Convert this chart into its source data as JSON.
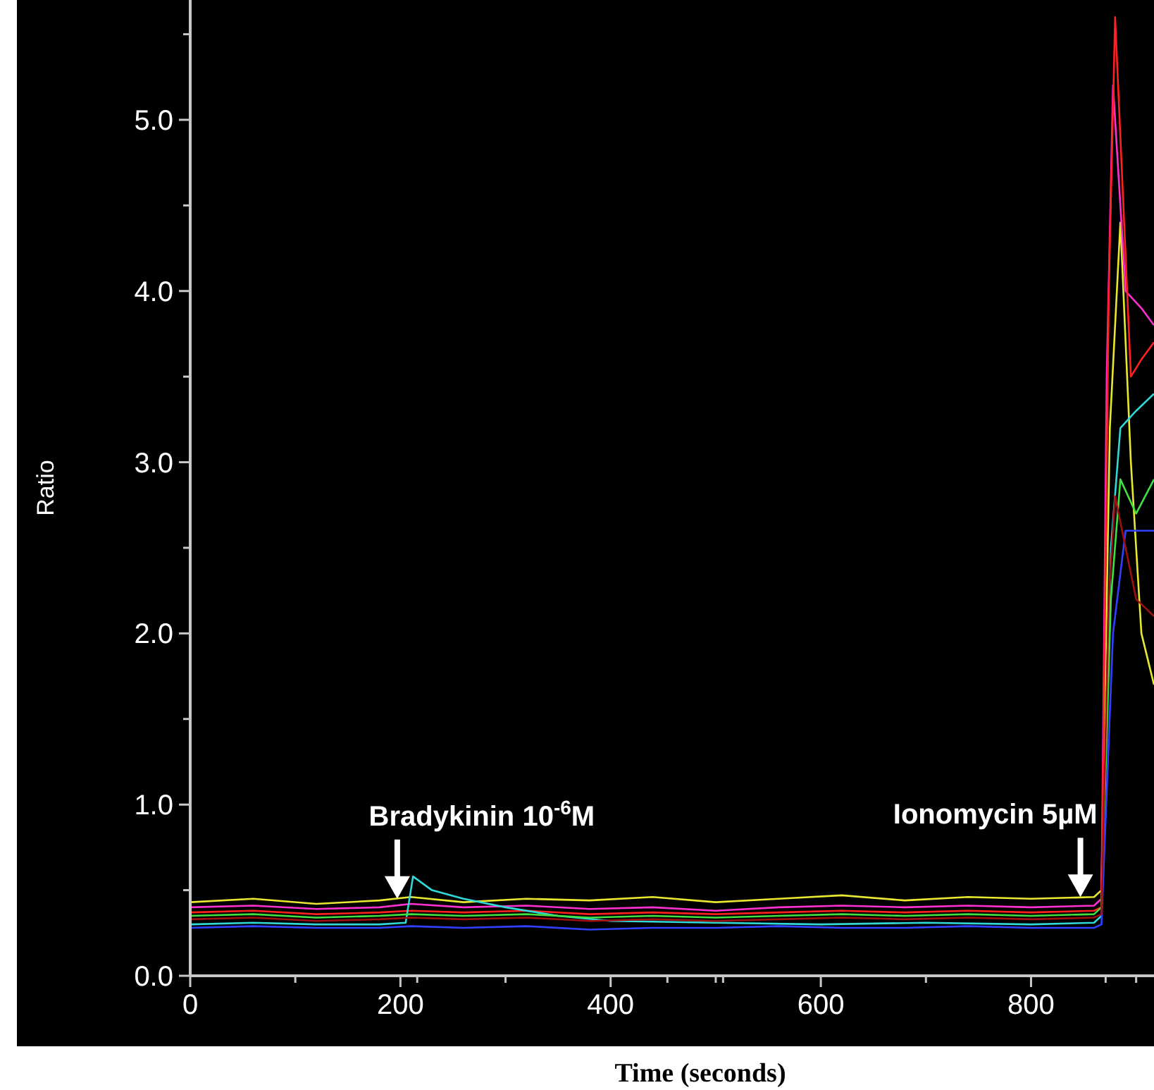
{
  "chart_data": {
    "type": "line",
    "xlabel": "Time (seconds)",
    "ylabel": "Ratio",
    "xlim": [
      0,
      917
    ],
    "ylim": [
      0,
      5.7
    ],
    "xticks": [
      0,
      {
        "value": 100,
        "label": null
      },
      200,
      {
        "value": 216,
        "label": null
      },
      {
        "value": 300,
        "label": null
      },
      400,
      {
        "value": 454,
        "label": null
      },
      {
        "value": 500,
        "label": null
      },
      {
        "value": 507,
        "label": null
      },
      600,
      {
        "value": 700,
        "label": null
      },
      800,
      {
        "value": 871,
        "label": null
      },
      {
        "value": 900,
        "label": null
      }
    ],
    "yticks": [
      {
        "value": 0,
        "label": "0.0"
      },
      {
        "value": 0.5,
        "label": null
      },
      {
        "value": 1,
        "label": "1.0"
      },
      {
        "value": 1.5,
        "label": null
      },
      {
        "value": 2,
        "label": "2.0"
      },
      {
        "value": 2.5,
        "label": null
      },
      {
        "value": 3,
        "label": "3.0"
      },
      {
        "value": 3.5,
        "label": null
      },
      {
        "value": 4,
        "label": "4.0"
      },
      {
        "value": 4.5,
        "label": null
      },
      {
        "value": 5,
        "label": "5.0"
      },
      {
        "value": 5.5,
        "label": null
      }
    ],
    "grid": false,
    "marker": "none",
    "line_style": "solid",
    "annotations": [
      {
        "text": "Bradykinin 10$^{-6}$M",
        "x": 197,
        "y": 0.45
      },
      {
        "text": "Ionomycin 5µM",
        "x": 847,
        "y": 0.46
      }
    ],
    "series": [
      {
        "color": "#e8e830",
        "x": [
          0,
          60,
          120,
          180,
          210,
          260,
          320,
          380,
          440,
          500,
          560,
          620,
          680,
          740,
          800,
          860,
          867,
          875,
          885,
          895,
          905,
          917
        ],
        "values": [
          0.43,
          0.45,
          0.42,
          0.44,
          0.46,
          0.43,
          0.45,
          0.44,
          0.46,
          0.43,
          0.45,
          0.47,
          0.44,
          0.46,
          0.45,
          0.46,
          0.5,
          3.2,
          4.4,
          3.0,
          2.0,
          1.7
        ]
      },
      {
        "color": "#ff30d0",
        "x": [
          0,
          60,
          120,
          180,
          210,
          260,
          320,
          380,
          440,
          500,
          560,
          620,
          680,
          740,
          800,
          860,
          867,
          872,
          878,
          890,
          905,
          917
        ],
        "values": [
          0.4,
          0.41,
          0.39,
          0.4,
          0.42,
          0.4,
          0.41,
          0.39,
          0.4,
          0.38,
          0.4,
          0.41,
          0.4,
          0.41,
          0.4,
          0.41,
          0.45,
          3.5,
          5.2,
          4.0,
          3.9,
          3.8
        ]
      },
      {
        "color": "#ff2020",
        "x": [
          0,
          60,
          120,
          180,
          210,
          260,
          320,
          380,
          440,
          500,
          560,
          620,
          680,
          740,
          800,
          860,
          867,
          874,
          880,
          895,
          905,
          917
        ],
        "values": [
          0.37,
          0.38,
          0.36,
          0.37,
          0.38,
          0.37,
          0.38,
          0.36,
          0.37,
          0.36,
          0.37,
          0.38,
          0.37,
          0.38,
          0.37,
          0.38,
          0.4,
          4.0,
          5.6,
          3.5,
          3.6,
          3.7
        ]
      },
      {
        "color": "#30d8d8",
        "x": [
          0,
          60,
          120,
          180,
          205,
          212,
          230,
          260,
          300,
          350,
          400,
          500,
          600,
          700,
          800,
          860,
          867,
          876,
          885,
          900,
          917
        ],
        "values": [
          0.3,
          0.31,
          0.3,
          0.3,
          0.31,
          0.58,
          0.5,
          0.45,
          0.4,
          0.35,
          0.32,
          0.31,
          0.3,
          0.31,
          0.3,
          0.31,
          0.35,
          2.5,
          3.2,
          3.3,
          3.4
        ]
      },
      {
        "color": "#40e040",
        "x": [
          0,
          60,
          120,
          180,
          210,
          260,
          320,
          380,
          440,
          500,
          560,
          620,
          680,
          740,
          800,
          860,
          867,
          876,
          885,
          900,
          917
        ],
        "values": [
          0.35,
          0.36,
          0.34,
          0.35,
          0.36,
          0.35,
          0.36,
          0.34,
          0.35,
          0.34,
          0.35,
          0.36,
          0.35,
          0.36,
          0.35,
          0.36,
          0.4,
          2.2,
          2.9,
          2.7,
          2.9
        ]
      },
      {
        "color": "#3040ff",
        "x": [
          0,
          60,
          120,
          180,
          210,
          260,
          320,
          380,
          440,
          500,
          560,
          620,
          680,
          740,
          800,
          860,
          867,
          878,
          890,
          905,
          917
        ],
        "values": [
          0.28,
          0.29,
          0.28,
          0.28,
          0.29,
          0.28,
          0.29,
          0.27,
          0.28,
          0.28,
          0.29,
          0.28,
          0.28,
          0.29,
          0.28,
          0.28,
          0.3,
          2.0,
          2.6,
          2.6,
          2.6
        ]
      },
      {
        "color": "#a01010",
        "x": [
          0,
          60,
          120,
          180,
          210,
          260,
          320,
          380,
          440,
          500,
          560,
          620,
          680,
          740,
          800,
          860,
          867,
          874,
          880,
          900,
          917
        ],
        "values": [
          0.33,
          0.34,
          0.32,
          0.33,
          0.34,
          0.33,
          0.34,
          0.32,
          0.33,
          0.32,
          0.33,
          0.34,
          0.33,
          0.34,
          0.33,
          0.34,
          0.36,
          2.2,
          2.8,
          2.2,
          2.1
        ]
      }
    ]
  }
}
